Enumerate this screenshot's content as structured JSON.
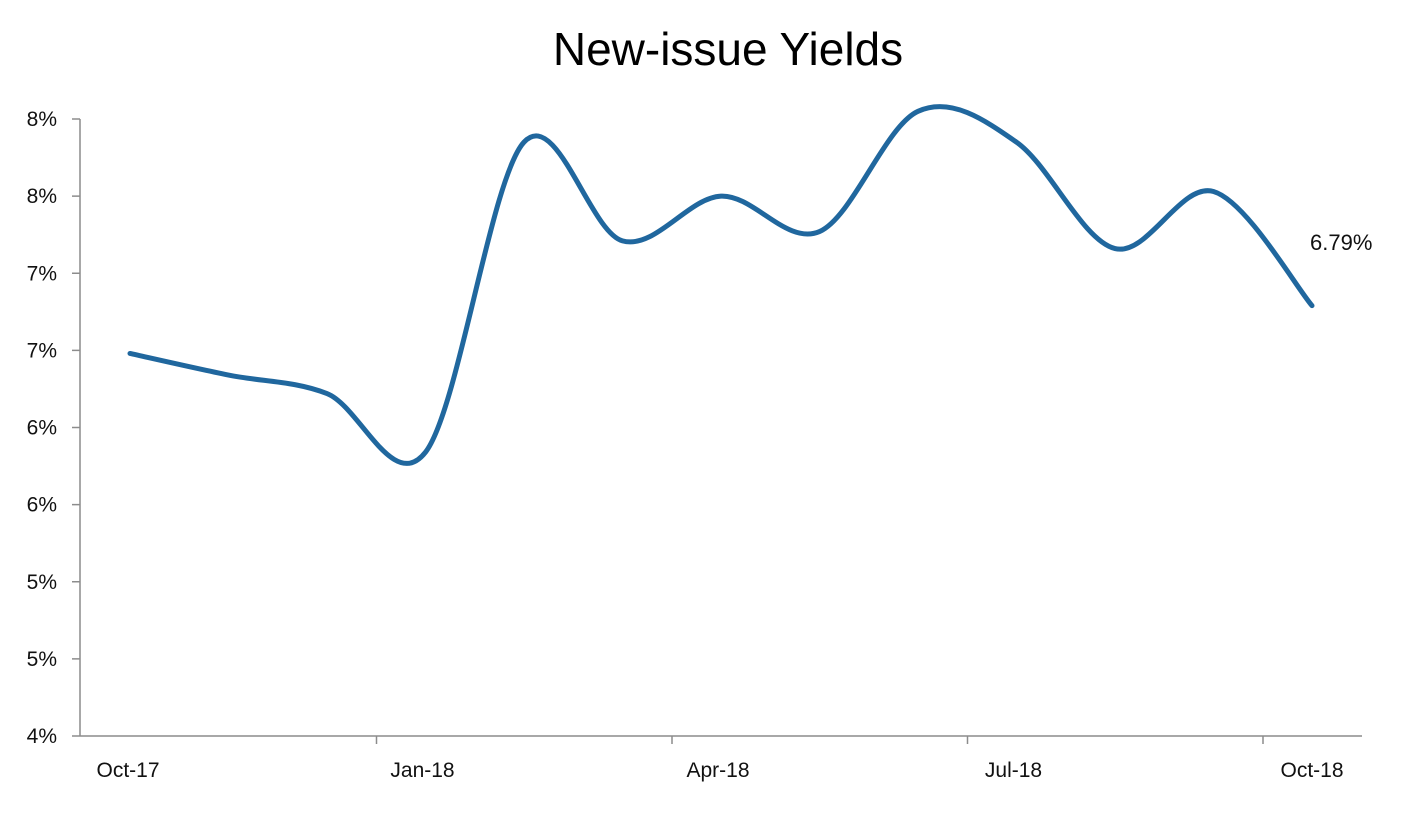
{
  "chart_data": {
    "type": "line",
    "title": "New-issue Yields",
    "xlabel": "",
    "ylabel": "",
    "x_tick_labels": [
      "Oct-17",
      "Jan-18",
      "Apr-18",
      "Jul-18",
      "Oct-18"
    ],
    "y_tick_labels": [
      "4%",
      "5%",
      "5%",
      "6%",
      "6%",
      "7%",
      "7%",
      "8%",
      "8%"
    ],
    "ylim": [
      4.0,
      8.0
    ],
    "grid": false,
    "legend": "none",
    "line_color": "#20679e",
    "series": [
      {
        "x": [
          "Oct-17",
          "Nov-17",
          "Dec-17",
          "Jan-18",
          "Feb-18",
          "Mar-18",
          "Apr-18",
          "May-18",
          "Jun-18",
          "Jul-18",
          "Aug-18",
          "Sep-18",
          "Oct-18"
        ],
        "values": [
          6.48,
          6.34,
          6.22,
          5.84,
          7.85,
          7.21,
          7.5,
          7.27,
          8.05,
          7.85,
          7.16,
          7.53,
          6.79
        ]
      }
    ],
    "annotations": [
      {
        "text": "6.79%",
        "x": "Oct-18",
        "y": 6.79
      }
    ]
  }
}
